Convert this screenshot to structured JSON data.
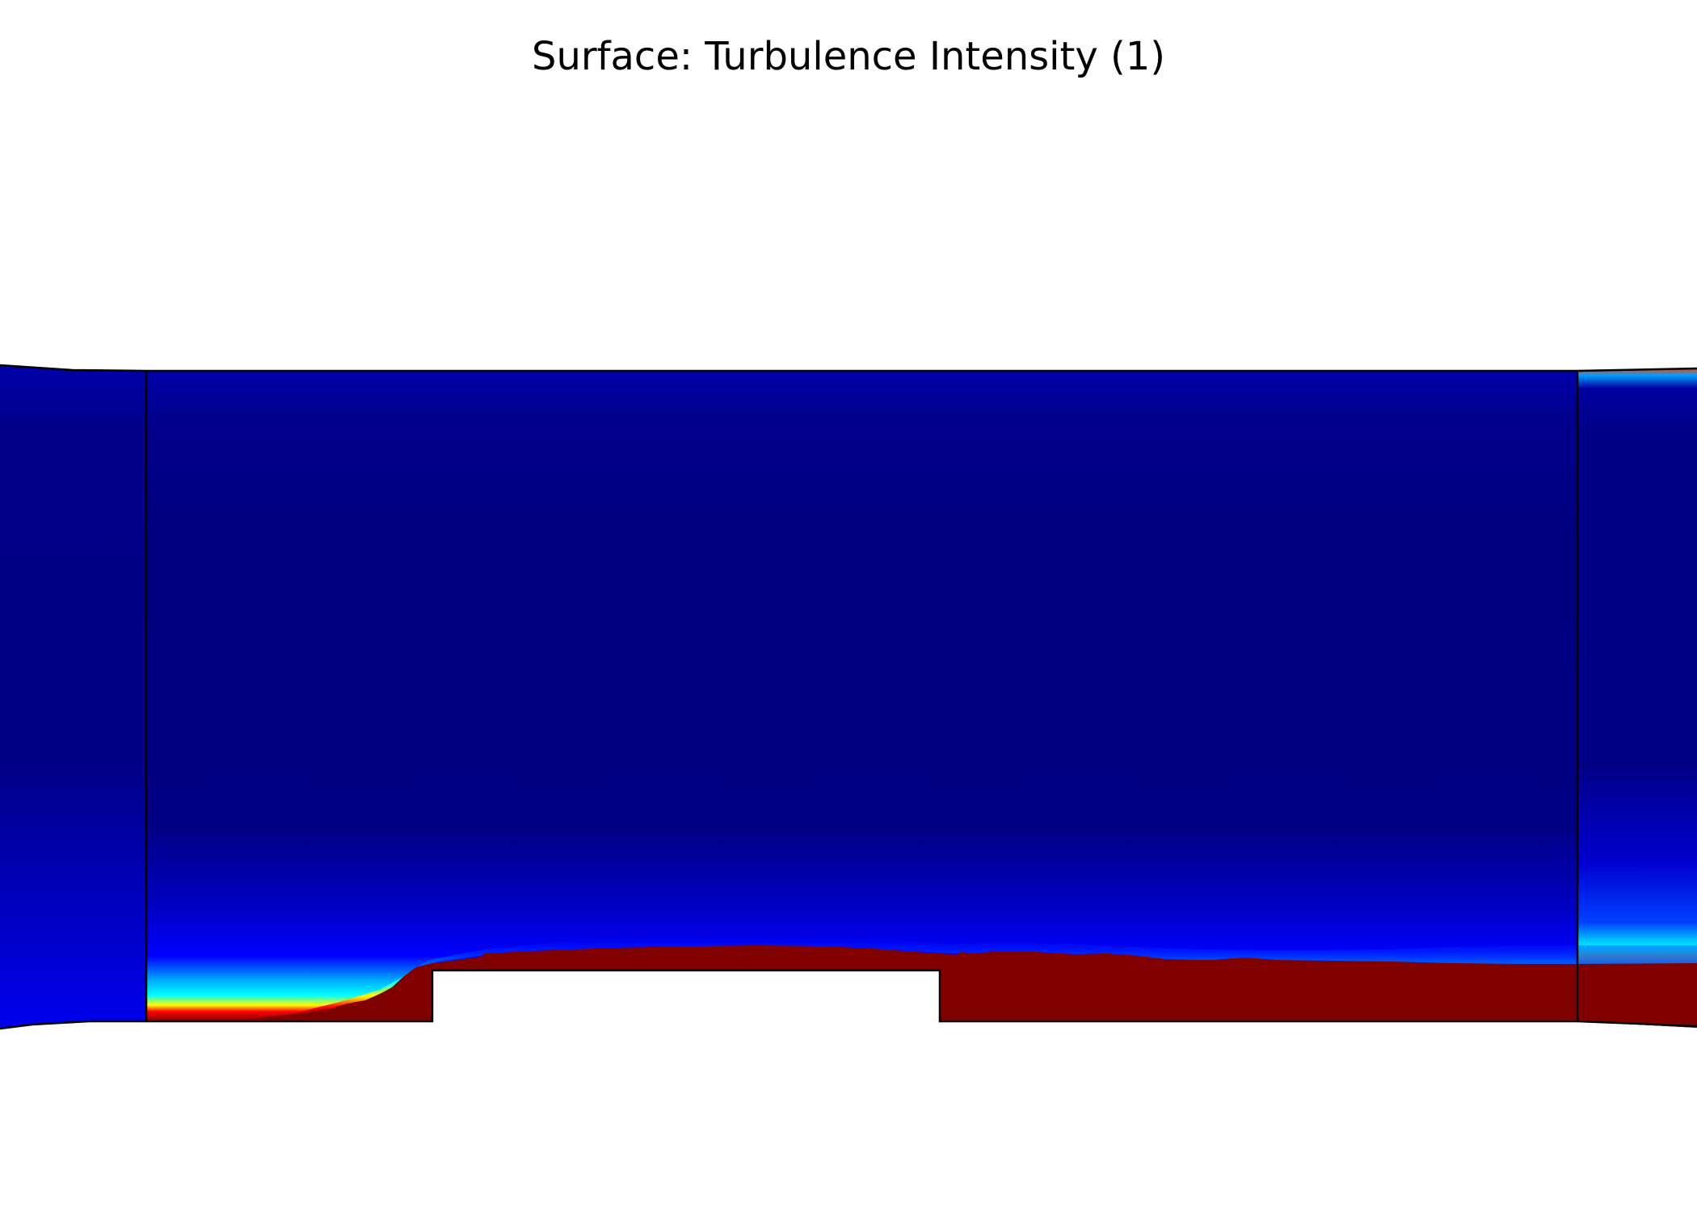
{
  "plot": {
    "title": "Surface: Turbulence Intensity (1)"
  },
  "colors": {
    "background": "#ffffff",
    "field_low": "#000080",
    "field_low_mid": "#0000b0",
    "field_blue": "#0000ff",
    "field_cyan": "#00ffff",
    "field_yellow": "#ffff00",
    "field_red": "#ff0000",
    "field_high": "#800000",
    "boundary": "#000000"
  }
}
